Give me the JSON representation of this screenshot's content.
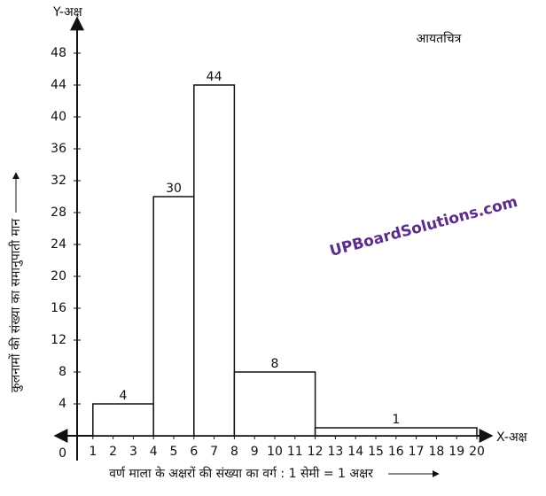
{
  "chart_data": {
    "type": "histogram",
    "title": "आयतचित्र",
    "x_axis_name": "X-अक्ष",
    "y_axis_name": "Y-अक्ष",
    "xlabel": "वर्ण माला के अक्षरों की संख्या का वर्ग : 1 सेमी = 1 अक्षर",
    "ylabel": "कुलनामों की संख्या का समानुपाती मान",
    "watermark": "UPBoardSolutions.com",
    "bins": [
      1,
      4,
      6,
      8,
      12,
      20
    ],
    "counts": [
      4,
      30,
      44,
      8,
      1
    ],
    "color": "#ffffff",
    "xlim": [
      0,
      21
    ],
    "ylim": [
      0,
      52
    ],
    "xticks": [
      1,
      2,
      3,
      4,
      5,
      6,
      7,
      8,
      9,
      10,
      11,
      12,
      13,
      14,
      15,
      16,
      17,
      18,
      19,
      20
    ],
    "yticks": [
      0,
      4,
      8,
      12,
      16,
      20,
      24,
      28,
      32,
      36,
      40,
      44,
      48
    ]
  }
}
